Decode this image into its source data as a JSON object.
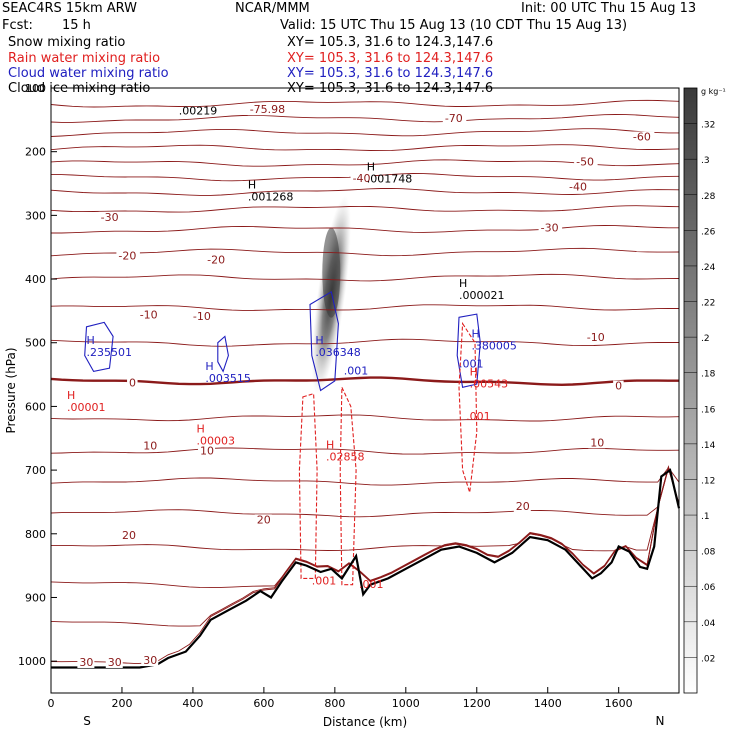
{
  "header": {
    "run": "SEAC4RS 15km ARW",
    "org": "NCAR/MMM",
    "init": "Init: 00 UTC Thu 15 Aug 13",
    "fcst_label": "Fcst:",
    "fcst_value": "15 h",
    "valid": "Valid: 15 UTC Thu 15 Aug 13 (10 CDT Thu 15 Aug 13)",
    "fields": [
      {
        "name": "Snow mixing ratio",
        "xy": "XY= 105.3, 31.6 to 124.3,147.6",
        "color": "#000000"
      },
      {
        "name": "Rain water mixing ratio",
        "xy": "XY= 105.3, 31.6 to 124.3,147.6",
        "color": "#e02020"
      },
      {
        "name": "Cloud water mixing ratio",
        "xy": "XY= 105.3, 31.6 to 124.3,147.6",
        "color": "#2020c0"
      },
      {
        "name": "Cloud ice mixing ratio",
        "xy": "XY= 105.3, 31.6 to 124.3,147.6",
        "color": "#000000"
      }
    ]
  },
  "chart_data": {
    "type": "cross-section",
    "xlabel": "Distance (km)",
    "ylabel": "Pressure (hPa)",
    "xlim": [
      0,
      1770
    ],
    "ylim": [
      1050,
      100
    ],
    "x_ticks": [
      0,
      200,
      400,
      600,
      800,
      1000,
      1200,
      1400,
      1600
    ],
    "y_ticks": [
      100,
      200,
      300,
      400,
      500,
      600,
      700,
      800,
      900,
      1000
    ],
    "x_end_labels": {
      "left": "S",
      "right": "N"
    },
    "colorbar": {
      "unit": "g kg⁻¹",
      "ticks": [
        ".32",
        ".3",
        ".28",
        ".26",
        ".24",
        ".22",
        ".2",
        ".18",
        ".16",
        ".14",
        ".12",
        ".1",
        ".08",
        ".06",
        ".04",
        ".02"
      ]
    },
    "temperature_contours": [
      {
        "label": "-75.98",
        "x": 560,
        "p": 138
      },
      {
        "label": "-70",
        "x": 1110,
        "p": 152
      },
      {
        "label": "-60",
        "x": 1640,
        "p": 181
      },
      {
        "label": "-50",
        "x": 1480,
        "p": 220
      },
      {
        "label": "-40",
        "x": 1460,
        "p": 259
      },
      {
        "label": "-40",
        "x": 850,
        "p": 246
      },
      {
        "label": "-30",
        "x": 140,
        "p": 307
      },
      {
        "label": "-30",
        "x": 1380,
        "p": 324
      },
      {
        "label": "-20",
        "x": 190,
        "p": 368
      },
      {
        "label": "-20",
        "x": 440,
        "p": 374
      },
      {
        "label": "-10",
        "x": 250,
        "p": 460
      },
      {
        "label": "-10",
        "x": 400,
        "p": 463
      },
      {
        "label": "-10",
        "x": 1510,
        "p": 496
      },
      {
        "label": "0",
        "x": 220,
        "p": 567
      },
      {
        "label": "0",
        "x": 1590,
        "p": 572
      },
      {
        "label": "10",
        "x": 260,
        "p": 666
      },
      {
        "label": "10",
        "x": 420,
        "p": 674
      },
      {
        "label": "10",
        "x": 1520,
        "p": 661
      },
      {
        "label": "20",
        "x": 580,
        "p": 782
      },
      {
        "label": "20",
        "x": 1310,
        "p": 761
      },
      {
        "label": "20",
        "x": 200,
        "p": 807
      },
      {
        "label": "30",
        "x": 80,
        "p": 1006
      },
      {
        "label": "30",
        "x": 160,
        "p": 1006
      },
      {
        "label": "30",
        "x": 260,
        "p": 1003
      }
    ],
    "maxima_labels": [
      {
        "text": "H",
        "value": ".001268",
        "x": 555,
        "p": 275,
        "color": "#000000"
      },
      {
        "text": "H",
        "value": ".001748",
        "x": 890,
        "p": 247,
        "color": "#000000"
      },
      {
        "text": "H",
        "value": ".000021",
        "x": 1150,
        "p": 430,
        "color": "#000000"
      },
      {
        "text": "H",
        "value": ".235501",
        "x": 100,
        "p": 519,
        "color": "#2020c0"
      },
      {
        "text": "H",
        "value": ".003515",
        "x": 435,
        "p": 560,
        "color": "#2020c0"
      },
      {
        "text": "H",
        "value": ".036348",
        "x": 745,
        "p": 519,
        "color": "#2020c0"
      },
      {
        "text": "H",
        "value": ".380005",
        "x": 1185,
        "p": 509,
        "color": "#2020c0"
      },
      {
        "text": "H",
        "value": ".00001",
        "x": 45,
        "p": 606,
        "color": "#e02020"
      },
      {
        "text": "H",
        "value": ".00003",
        "x": 410,
        "p": 658,
        "color": "#e02020"
      },
      {
        "text": "H",
        "value": ".02858",
        "x": 775,
        "p": 683,
        "color": "#e02020"
      },
      {
        "text": "H",
        "value": ".00543",
        "x": 1180,
        "p": 569,
        "color": "#e02020"
      }
    ],
    "contour_value_labels": [
      {
        "value": ".001",
        "x": 825,
        "p": 550,
        "color": "#2020c0"
      },
      {
        "value": ".001",
        "x": 1150,
        "p": 539,
        "color": "#2020c0"
      },
      {
        "value": ".001",
        "x": 1170,
        "p": 621,
        "color": "#e02020"
      },
      {
        "value": ".001",
        "x": 735,
        "p": 880,
        "color": "#e02020"
      },
      {
        "value": ".001",
        "x": 868,
        "p": 885,
        "color": "#e02020"
      },
      {
        "value": ".00219",
        "x": 360,
        "p": 142,
        "color": "#000000"
      }
    ],
    "terrain_km": [
      0,
      100,
      200,
      250,
      300,
      330,
      380,
      420,
      450,
      500,
      550,
      590,
      620,
      650,
      690,
      720,
      760,
      790,
      820,
      845,
      860,
      880,
      900,
      950,
      1000,
      1050,
      1100,
      1150,
      1200,
      1250,
      1300,
      1350,
      1400,
      1450,
      1500,
      1525,
      1550,
      1580,
      1600,
      1630,
      1660,
      1680,
      1700,
      1720,
      1745,
      1770
    ],
    "terrain_hpa": [
      1010,
      1010,
      1010,
      1010,
      1005,
      995,
      985,
      960,
      935,
      920,
      905,
      890,
      900,
      875,
      845,
      850,
      860,
      855,
      870,
      848,
      835,
      895,
      880,
      870,
      855,
      840,
      825,
      820,
      830,
      845,
      830,
      805,
      810,
      825,
      855,
      870,
      862,
      845,
      820,
      828,
      852,
      855,
      820,
      710,
      700,
      760
    ]
  }
}
